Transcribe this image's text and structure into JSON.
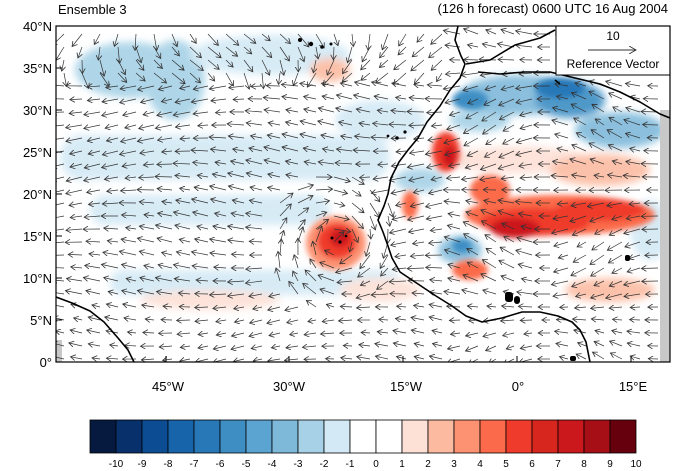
{
  "header": {
    "left": "Ensemble 3",
    "right": "(126 h forecast) 0600 UTC 16 Aug 2004"
  },
  "map": {
    "lat_labels": [
      "40°N",
      "35°N",
      "30°N",
      "25°N",
      "20°N",
      "15°N",
      "10°N",
      "5°N",
      "0°"
    ],
    "lon_labels": [
      "45°W",
      "30°W",
      "15°W",
      "0°",
      "15°E"
    ],
    "lat_range": [
      0,
      40
    ],
    "lon_range": [
      -57,
      19
    ]
  },
  "reference_vector": {
    "magnitude": "10",
    "label": "Reference Vector"
  },
  "colorbar": {
    "labels": [
      "-10",
      "-9",
      "-8",
      "-7",
      "-6",
      "-5",
      "-4",
      "-3",
      "-2",
      "-1",
      "0",
      "1",
      "2",
      "3",
      "4",
      "5",
      "6",
      "7",
      "8",
      "9",
      "10"
    ],
    "colors": [
      "#061a40",
      "#08306b",
      "#0b4c93",
      "#1764ab",
      "#2878b8",
      "#3e8ec4",
      "#5ba3d0",
      "#7fb9da",
      "#a6d1e6",
      "#d3e9f5",
      "#ffffff",
      "#ffffff",
      "#fde0d6",
      "#fcbba1",
      "#fc9272",
      "#fb6a4a",
      "#ef3b2c",
      "#d7261e",
      "#cb181d",
      "#a50f15",
      "#67000d"
    ]
  }
}
